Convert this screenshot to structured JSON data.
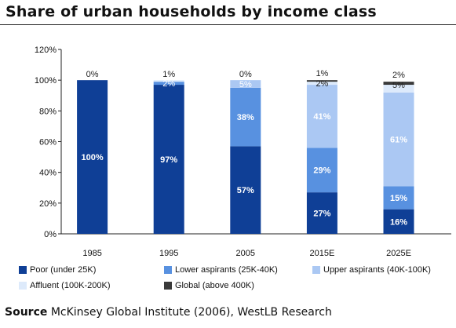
{
  "chart_data": {
    "type": "bar",
    "stacked": true,
    "title": "Share of urban households by income class",
    "categories": [
      "1985",
      "1995",
      "2005",
      "2015E",
      "2025E"
    ],
    "ylim": [
      0,
      120
    ],
    "yticks": [
      "0%",
      "20%",
      "40%",
      "60%",
      "80%",
      "100%",
      "120%"
    ],
    "grid": false,
    "legend_position": "bottom",
    "series": [
      {
        "name": "Poor (under 25K)",
        "color": "#0f3f96",
        "values": [
          100,
          97,
          57,
          27,
          16
        ],
        "labels": [
          "100%",
          "97%",
          "57%",
          "27%",
          "16%"
        ],
        "label_color": "#ffffff"
      },
      {
        "name": "Lower aspirants (25K-40K)",
        "color": "#5891e0",
        "values": [
          0,
          2,
          38,
          29,
          15
        ],
        "labels": [
          "",
          "2%",
          "38%",
          "29%",
          "15%"
        ],
        "label_color": "#ffffff"
      },
      {
        "name": "Upper aspirants (40K-100K)",
        "color": "#abc8f3",
        "values": [
          0,
          0,
          5,
          41,
          61
        ],
        "labels": [
          "",
          "",
          "5%",
          "41%",
          "61%"
        ],
        "label_color": "#ffffff"
      },
      {
        "name": "Affluent (100K-200K)",
        "color": "#ddeafb",
        "values": [
          0,
          1,
          0,
          2,
          5
        ],
        "labels": [
          "",
          "1%",
          "0%",
          "2%",
          "5%"
        ],
        "label_color": "#222222"
      },
      {
        "name": "Global (above 400K)",
        "color": "#3a3a3a",
        "values": [
          0,
          0,
          0,
          1,
          2
        ],
        "labels": [
          "0%",
          "",
          "",
          "1%",
          "2%"
        ],
        "label_color": "#222222"
      }
    ]
  },
  "source": {
    "label": "Source",
    "text": "McKinsey Global Institute (2006), WestLB Research"
  }
}
